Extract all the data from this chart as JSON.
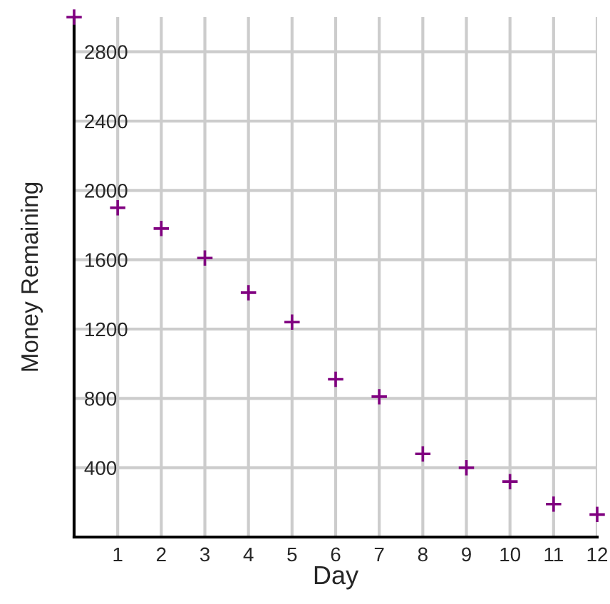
{
  "chart_data": {
    "type": "scatter",
    "xlabel": "Day",
    "ylabel": "Money Remaining",
    "x": [
      0,
      1,
      2,
      3,
      4,
      5,
      6,
      7,
      8,
      9,
      10,
      11,
      12
    ],
    "series": [
      {
        "color": "#800080",
        "values": [
          3000,
          1900,
          1780,
          1610,
          1410,
          1240,
          910,
          810,
          480,
          400,
          320,
          190,
          130
        ]
      }
    ],
    "xlim": [
      0,
      12
    ],
    "xticks": [
      1,
      2,
      3,
      4,
      5,
      6,
      7,
      8,
      9,
      10,
      11,
      12
    ],
    "ylim": [
      0,
      3000
    ],
    "yticks": [
      400,
      800,
      1200,
      1600,
      2000,
      2400,
      2800
    ],
    "grid": true,
    "marker": "cross"
  }
}
